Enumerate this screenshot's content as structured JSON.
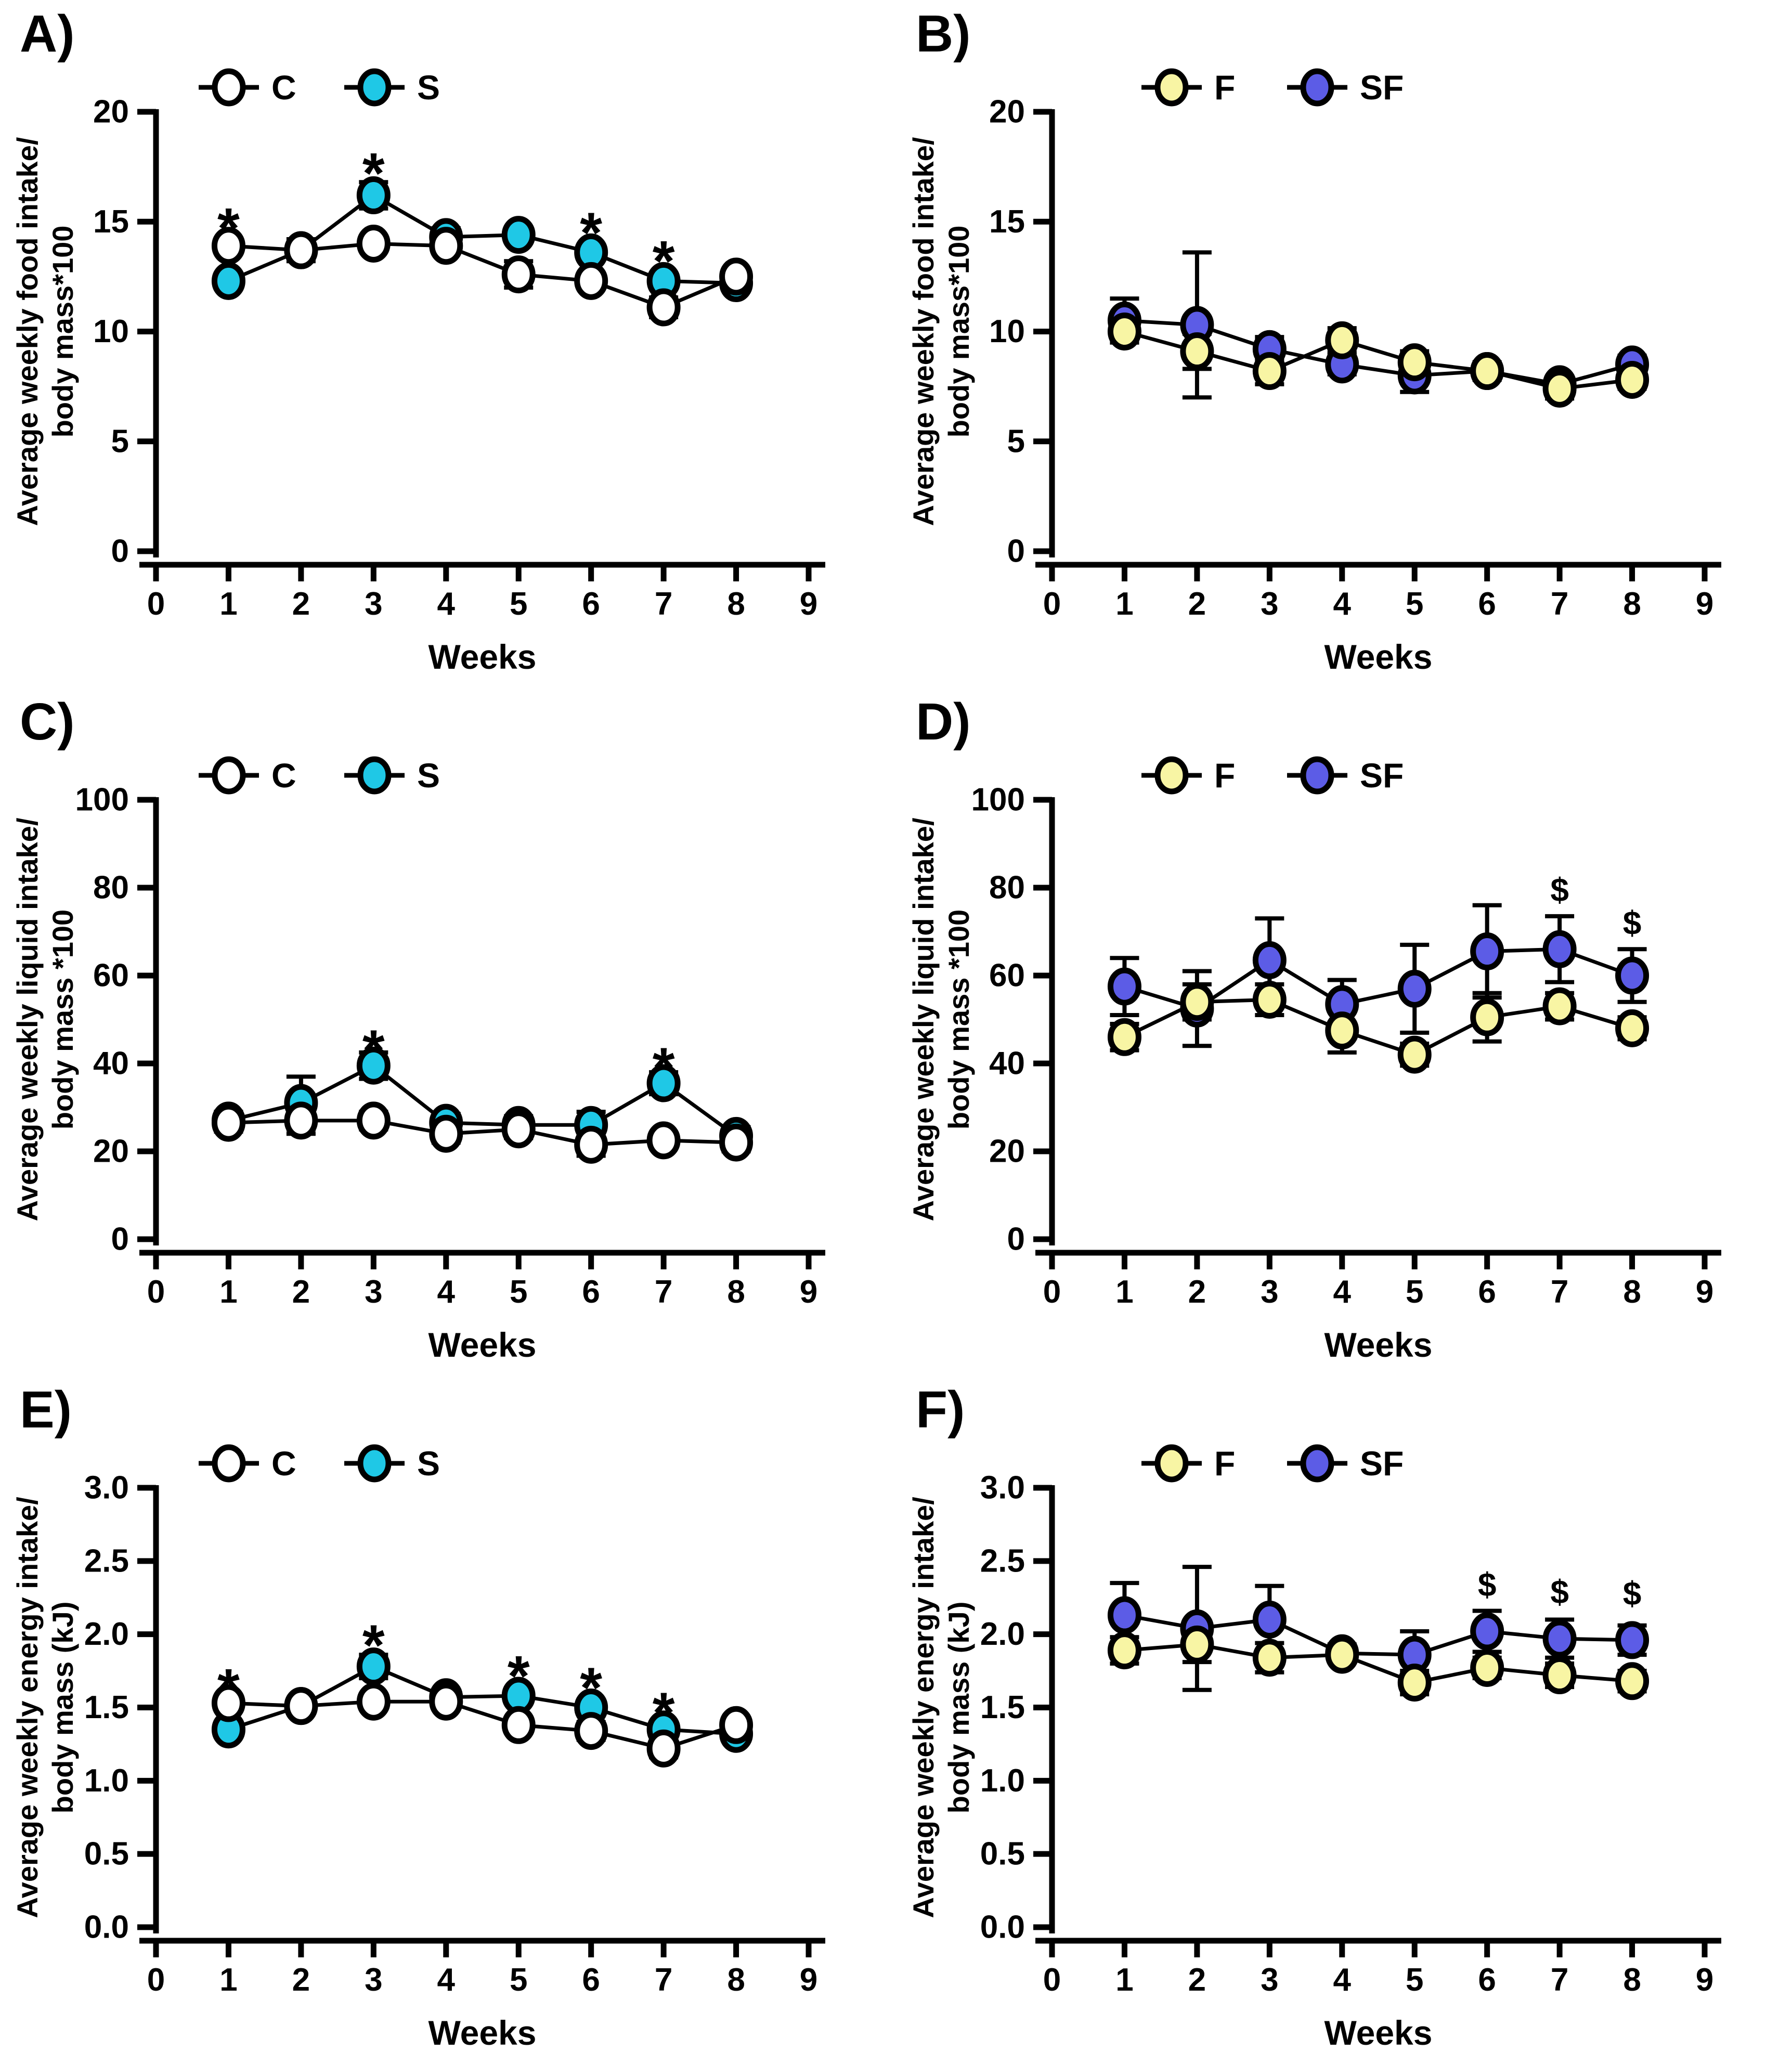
{
  "chart_data": [
    {
      "panel_label": "A)",
      "type": "line",
      "xlabel": "Weeks",
      "ylabel_line1": "Average weekly food intake/",
      "ylabel_line2": "body mass*100",
      "ylim": [
        0,
        20
      ],
      "yticks": [
        {
          "v": 0,
          "label": "0"
        },
        {
          "v": 5,
          "label": "5"
        },
        {
          "v": 10,
          "label": "10"
        },
        {
          "v": 15,
          "label": "15"
        },
        {
          "v": 20,
          "label": "20"
        }
      ],
      "xticks": [
        "0",
        "1",
        "2",
        "3",
        "4",
        "5",
        "6",
        "7",
        "8",
        "9"
      ],
      "x": [
        1,
        2,
        3,
        4,
        5,
        6,
        7,
        8
      ],
      "series": [
        {
          "name": "C",
          "color": "#ffffff",
          "values": [
            13.9,
            13.7,
            14.0,
            13.9,
            12.6,
            12.3,
            11.1,
            12.5
          ],
          "errors": [
            0.3,
            0.5,
            0.3,
            0.35,
            0.6,
            0.35,
            0.45,
            0.35
          ]
        },
        {
          "name": "S",
          "color": "#1fc8e6",
          "values": [
            12.3,
            13.7,
            16.2,
            14.3,
            14.4,
            13.6,
            12.3,
            12.2
          ],
          "errors": [
            0.35,
            0.3,
            0.6,
            0.4,
            0.3,
            0.3,
            0.3,
            0.3
          ]
        }
      ],
      "annotations": [
        {
          "symbol": "*",
          "week": 1,
          "y": 15.4
        },
        {
          "symbol": "*",
          "week": 3,
          "y": 17.9
        },
        {
          "symbol": "*",
          "week": 6,
          "y": 15.2
        },
        {
          "symbol": "*",
          "week": 7,
          "y": 13.9
        }
      ]
    },
    {
      "panel_label": "B)",
      "type": "line",
      "xlabel": "Weeks",
      "ylabel_line1": "Average weekly food intake/",
      "ylabel_line2": "body mass*100",
      "ylim": [
        0,
        20
      ],
      "yticks": [
        {
          "v": 0,
          "label": "0"
        },
        {
          "v": 5,
          "label": "5"
        },
        {
          "v": 10,
          "label": "10"
        },
        {
          "v": 15,
          "label": "15"
        },
        {
          "v": 20,
          "label": "20"
        }
      ],
      "xticks": [
        "0",
        "1",
        "2",
        "3",
        "4",
        "5",
        "6",
        "7",
        "8",
        "9"
      ],
      "x": [
        1,
        2,
        3,
        4,
        5,
        6,
        7,
        8
      ],
      "series": [
        {
          "name": "F",
          "color": "#f8f5a4",
          "values": [
            10.0,
            9.1,
            8.2,
            9.6,
            8.6,
            8.2,
            7.4,
            7.8
          ],
          "errors": [
            0.5,
            0.8,
            0.6,
            0.55,
            0.5,
            0.4,
            0.45,
            0.4
          ]
        },
        {
          "name": "SF",
          "color": "#5c5ce6",
          "values": [
            10.5,
            10.3,
            9.2,
            8.5,
            8.0,
            8.2,
            7.6,
            8.5
          ],
          "errors": [
            1.0,
            3.3,
            0.55,
            0.45,
            0.75,
            0.35,
            0.35,
            0.4
          ]
        }
      ],
      "annotations": []
    },
    {
      "panel_label": "C)",
      "type": "line",
      "xlabel": "Weeks",
      "ylabel_line1": "Average weekly liquid intake/",
      "ylabel_line2": "body mass *100",
      "ylim": [
        0,
        100
      ],
      "yticks": [
        {
          "v": 0,
          "label": "0"
        },
        {
          "v": 20,
          "label": "20"
        },
        {
          "v": 40,
          "label": "40"
        },
        {
          "v": 60,
          "label": "60"
        },
        {
          "v": 80,
          "label": "80"
        },
        {
          "v": 100,
          "label": "100"
        }
      ],
      "xticks": [
        "0",
        "1",
        "2",
        "3",
        "4",
        "5",
        "6",
        "7",
        "8",
        "9"
      ],
      "x": [
        1,
        2,
        3,
        4,
        5,
        6,
        7,
        8
      ],
      "series": [
        {
          "name": "C",
          "color": "#ffffff",
          "values": [
            26.5,
            27,
            27,
            24,
            25,
            21.5,
            22.5,
            22
          ],
          "errors": [
            2,
            3,
            2,
            2,
            2,
            2.5,
            1.5,
            2
          ]
        },
        {
          "name": "S",
          "color": "#1fc8e6",
          "values": [
            27,
            31,
            39.5,
            26.5,
            26,
            26,
            35.5,
            23.5
          ],
          "errors": [
            2,
            6,
            3,
            2,
            2,
            3,
            2.5,
            2
          ]
        }
      ],
      "annotations": [
        {
          "symbol": "*",
          "week": 3,
          "y": 46.5
        },
        {
          "symbol": "*",
          "week": 7,
          "y": 42.5
        }
      ]
    },
    {
      "panel_label": "D)",
      "type": "line",
      "xlabel": "Weeks",
      "ylabel_line1": "Average weekly liquid intake/",
      "ylabel_line2": "body mass *100",
      "ylim": [
        0,
        100
      ],
      "yticks": [
        {
          "v": 0,
          "label": "0"
        },
        {
          "v": 20,
          "label": "20"
        },
        {
          "v": 40,
          "label": "40"
        },
        {
          "v": 60,
          "label": "60"
        },
        {
          "v": 80,
          "label": "80"
        },
        {
          "v": 100,
          "label": "100"
        }
      ],
      "xticks": [
        "0",
        "1",
        "2",
        "3",
        "4",
        "5",
        "6",
        "7",
        "8",
        "9"
      ],
      "x": [
        1,
        2,
        3,
        4,
        5,
        6,
        7,
        8
      ],
      "series": [
        {
          "name": "F",
          "color": "#f8f5a4",
          "values": [
            46,
            54,
            54.5,
            47.5,
            42,
            50.5,
            53,
            48
          ],
          "errors": [
            3,
            4,
            3.5,
            5,
            2.5,
            5.5,
            3,
            2.5
          ]
        },
        {
          "name": "SF",
          "color": "#5c5ce6",
          "values": [
            57.5,
            52.5,
            63.5,
            53.5,
            57,
            65.5,
            66,
            60
          ],
          "errors": [
            6.5,
            8.5,
            9.5,
            5.5,
            10,
            10.5,
            7.5,
            6
          ]
        }
      ],
      "annotations": [
        {
          "symbol": "$",
          "week": 7,
          "y": 79.5
        },
        {
          "symbol": "$",
          "week": 8,
          "y": 72
        }
      ]
    },
    {
      "panel_label": "E)",
      "type": "line",
      "xlabel": "Weeks",
      "ylabel_line1": "Average weekly energy intake/",
      "ylabel_line2": "body mass (kJ)",
      "ylim": [
        0,
        3
      ],
      "yticks": [
        {
          "v": 0,
          "label": "0.0"
        },
        {
          "v": 0.5,
          "label": "0.5"
        },
        {
          "v": 1,
          "label": "1.0"
        },
        {
          "v": 1.5,
          "label": "1.5"
        },
        {
          "v": 2,
          "label": "2.0"
        },
        {
          "v": 2.5,
          "label": "2.5"
        },
        {
          "v": 3,
          "label": "3.0"
        }
      ],
      "xticks": [
        "0",
        "1",
        "2",
        "3",
        "4",
        "5",
        "6",
        "7",
        "8",
        "9"
      ],
      "x": [
        1,
        2,
        3,
        4,
        5,
        6,
        7,
        8
      ],
      "series": [
        {
          "name": "C",
          "color": "#ffffff",
          "values": [
            1.53,
            1.51,
            1.54,
            1.54,
            1.38,
            1.34,
            1.22,
            1.38
          ],
          "errors": [
            0.05,
            0.05,
            0.05,
            0.04,
            0.05,
            0.06,
            0.06,
            0.05
          ]
        },
        {
          "name": "S",
          "color": "#1fc8e6",
          "values": [
            1.35,
            1.51,
            1.78,
            1.57,
            1.58,
            1.5,
            1.35,
            1.32
          ],
          "errors": [
            0.05,
            0.04,
            0.08,
            0.04,
            0.05,
            0.05,
            0.05,
            0.04
          ]
        }
      ],
      "annotations": [
        {
          "symbol": "*",
          "week": 1,
          "y": 1.73
        },
        {
          "symbol": "*",
          "week": 3,
          "y": 2.03
        },
        {
          "symbol": "*",
          "week": 5,
          "y": 1.82
        },
        {
          "symbol": "*",
          "week": 6,
          "y": 1.74
        },
        {
          "symbol": "*",
          "week": 7,
          "y": 1.57
        }
      ]
    },
    {
      "panel_label": "F)",
      "type": "line",
      "xlabel": "Weeks",
      "ylabel_line1": "Average weekly energy intake/",
      "ylabel_line2": "body mass (kJ)",
      "ylim": [
        0,
        3
      ],
      "yticks": [
        {
          "v": 0,
          "label": "0.0"
        },
        {
          "v": 0.5,
          "label": "0.5"
        },
        {
          "v": 1,
          "label": "1.0"
        },
        {
          "v": 1.5,
          "label": "1.5"
        },
        {
          "v": 2,
          "label": "2.0"
        },
        {
          "v": 2.5,
          "label": "2.5"
        },
        {
          "v": 3,
          "label": "3.0"
        }
      ],
      "xticks": [
        "0",
        "1",
        "2",
        "3",
        "4",
        "5",
        "6",
        "7",
        "8",
        "9"
      ],
      "x": [
        1,
        2,
        3,
        4,
        5,
        6,
        7,
        8
      ],
      "series": [
        {
          "name": "F",
          "color": "#f8f5a4",
          "values": [
            1.89,
            1.93,
            1.84,
            1.86,
            1.67,
            1.77,
            1.72,
            1.68
          ],
          "errors": [
            0.09,
            0.12,
            0.1,
            0.05,
            0.08,
            0.07,
            0.08,
            0.07
          ]
        },
        {
          "name": "SF",
          "color": "#5c5ce6",
          "values": [
            2.13,
            2.04,
            2.1,
            1.87,
            1.86,
            2.02,
            1.97,
            1.96
          ],
          "errors": [
            0.22,
            0.42,
            0.23,
            0.06,
            0.16,
            0.14,
            0.13,
            0.1
          ]
        }
      ],
      "annotations": [
        {
          "symbol": "$",
          "week": 6,
          "y": 2.34
        },
        {
          "symbol": "$",
          "week": 7,
          "y": 2.29
        },
        {
          "symbol": "$",
          "week": 8,
          "y": 2.28
        }
      ]
    }
  ]
}
